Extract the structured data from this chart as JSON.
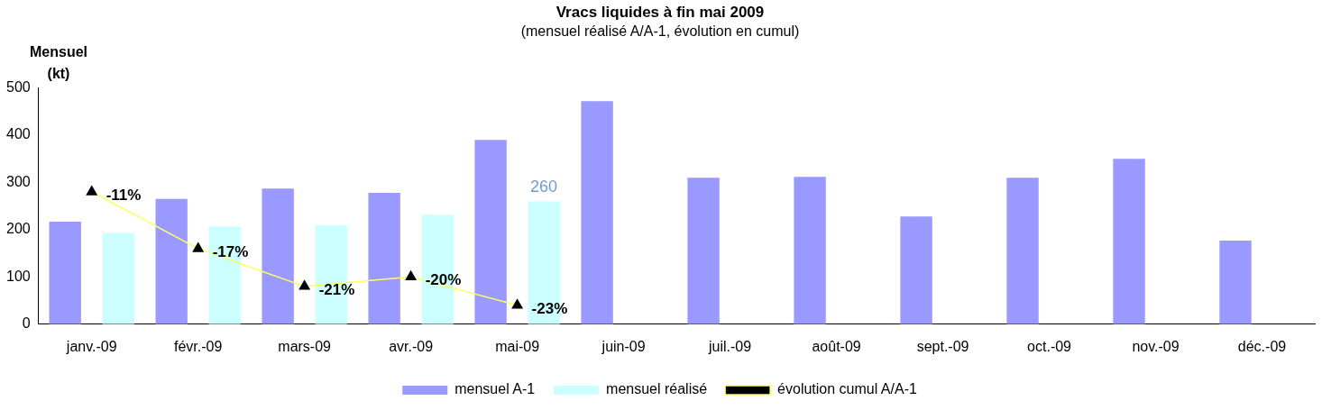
{
  "chart_data": {
    "type": "bar",
    "title": "Vracs liquides à fin mai 2009",
    "subtitle": "(mensuel réalisé A/A-1, évolution en cumul)",
    "ylabel": "Mensuel (kt)",
    "categories": [
      "janv.-09",
      "févr.-09",
      "mars-09",
      "avr.-09",
      "mai-09",
      "juin-09",
      "juil.-09",
      "août-09",
      "sept.-09",
      "oct.-09",
      "nov.-09",
      "déc.-09"
    ],
    "series": [
      {
        "name": "mensuel A-1",
        "color": "#9999ff",
        "values": [
          217,
          265,
          287,
          278,
          390,
          472,
          310,
          312,
          228,
          310,
          350,
          177
        ]
      },
      {
        "name": "mensuel réalisé",
        "color": "#ccffff",
        "values": [
          193,
          207,
          210,
          232,
          260,
          null,
          null,
          null,
          null,
          null,
          null,
          null
        ],
        "value_labels": [
          null,
          null,
          null,
          null,
          "260",
          null,
          null,
          null,
          null,
          null,
          null,
          null
        ]
      },
      {
        "name": "évolution cumul A/A-1",
        "type": "line",
        "axis": "y2",
        "color": "#ffff66",
        "marker": "triangle",
        "line_style": "solid",
        "values": [
          -11,
          -17,
          -21,
          -20,
          -23,
          null,
          null,
          null,
          null,
          null,
          null,
          null
        ],
        "value_labels": [
          "-11%",
          "-17%",
          "-21%",
          "-20%",
          "-23%",
          null,
          null,
          null,
          null,
          null,
          null,
          null
        ]
      }
    ],
    "ylim": [
      0,
      500
    ],
    "yticks": [
      0,
      100,
      200,
      300,
      400,
      500
    ],
    "grid": false,
    "legend": "bottom"
  }
}
